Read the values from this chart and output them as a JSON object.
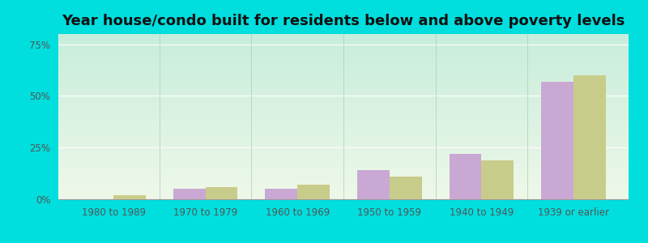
{
  "title": "Year house/condo built for residents below and above poverty levels",
  "categories": [
    "1980 to 1989",
    "1970 to 1979",
    "1960 to 1969",
    "1950 to 1959",
    "1940 to 1949",
    "1939 or earlier"
  ],
  "below_poverty": [
    0.0,
    5.0,
    5.0,
    14.0,
    22.0,
    57.0
  ],
  "above_poverty": [
    2.0,
    6.0,
    7.0,
    11.0,
    19.0,
    60.0
  ],
  "below_color": "#c9a8d4",
  "above_color": "#c8cc8a",
  "yticks": [
    0,
    25,
    50,
    75
  ],
  "ylim": [
    0,
    80
  ],
  "bar_width": 0.35,
  "chart_bg_top_left": "#c8ede0",
  "chart_bg_bottom_right": "#eef8e8",
  "outer_bg": "#00dede",
  "title_fontsize": 13,
  "tick_fontsize": 8.5,
  "legend_fontsize": 9.5
}
